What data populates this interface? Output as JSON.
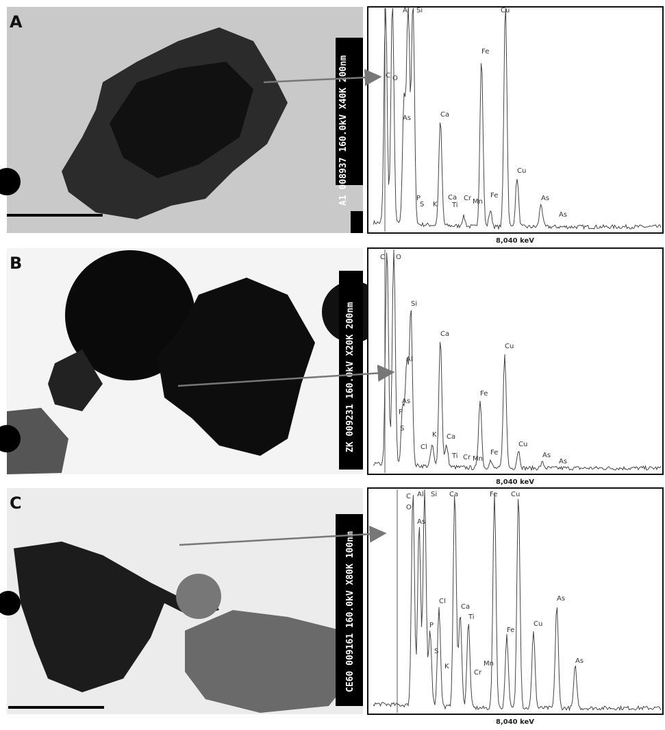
{
  "panels": [
    {
      "label": "A",
      "micrograph_text": "A1 008937 160.0kV X40K 200nm",
      "energy_label": "8,040 keV",
      "peaks": [
        "C",
        "O",
        "Al",
        "Si",
        "As",
        "P",
        "S",
        "K",
        "Ca",
        "Ca",
        "Ti",
        "Cr",
        "Mn",
        "Fe",
        "Fe",
        "Cu",
        "Cu",
        "As",
        "As"
      ]
    },
    {
      "label": "B",
      "micrograph_text": "ZK 009231 160.0kV X20K 200nm",
      "energy_label": "8,040 keV",
      "peaks": [
        "C",
        "O",
        "Si",
        "Al",
        "Ca",
        "As",
        "P",
        "S",
        "Cl",
        "K",
        "Ca",
        "Ti",
        "Cr",
        "Mn",
        "Fe",
        "Fe",
        "Cu",
        "Cu",
        "As",
        "As"
      ]
    },
    {
      "label": "C",
      "micrograph_text": "CE60 009161 160.0kV X80K 100nm",
      "energy_label": "8,040 keV",
      "peaks": [
        "C",
        "O",
        "Al",
        "Si",
        "Ca",
        "As",
        "Fe",
        "Cu",
        "Ca",
        "Cl",
        "Ti",
        "P",
        "S",
        "K",
        "Mn",
        "Cr",
        "Fe",
        "Cu",
        "As",
        "As"
      ]
    }
  ]
}
